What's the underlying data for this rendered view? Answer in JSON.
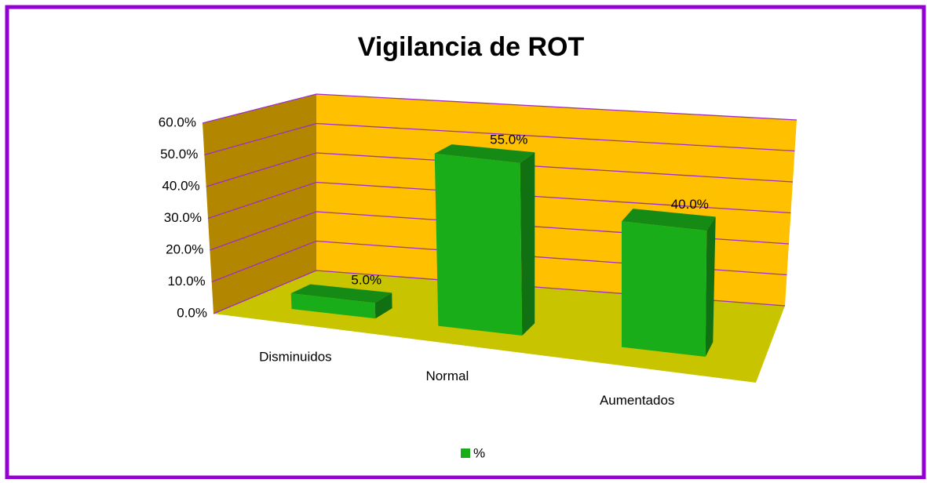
{
  "chart_data": {
    "type": "bar3d",
    "title": "Vigilancia de ROT",
    "categories": [
      "Disminuidos",
      "Normal",
      "Aumentados"
    ],
    "series": [
      {
        "name": "%",
        "color": "#1aad1a",
        "values": [
          5,
          55,
          40
        ],
        "value_labels": [
          "5.0%",
          "55.0%",
          "40.0%"
        ]
      }
    ],
    "ylim": [
      0,
      60
    ],
    "yticks": [
      {
        "value": 0,
        "label": "0.0%"
      },
      {
        "value": 10,
        "label": "10.0%"
      },
      {
        "value": 20,
        "label": "20.0%"
      },
      {
        "value": 30,
        "label": "30.0%"
      },
      {
        "value": 40,
        "label": "40.0%"
      },
      {
        "value": 50,
        "label": "50.0%"
      },
      {
        "value": 60,
        "label": "60.0%"
      }
    ],
    "grid": true,
    "legend": "bottom"
  }
}
